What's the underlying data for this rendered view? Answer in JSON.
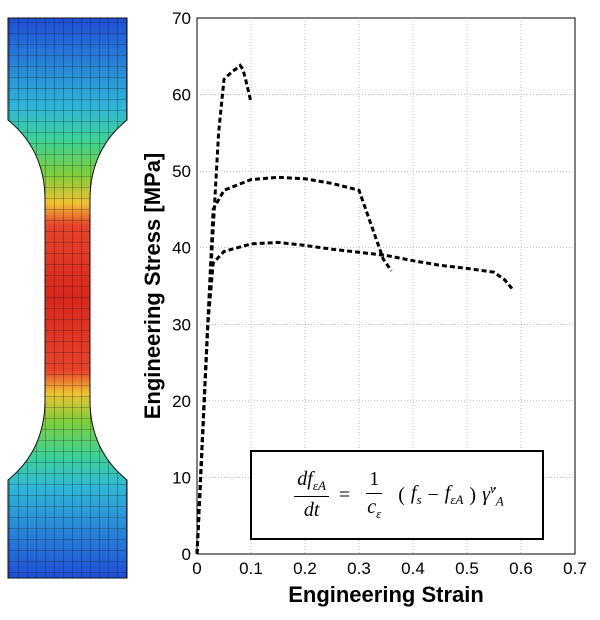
{
  "chart_data": {
    "type": "line",
    "title": "",
    "xlabel": "Engineering Strain",
    "ylabel": "Engineering Stress [MPa]",
    "xlim": [
      0,
      0.7
    ],
    "ylim": [
      0,
      70
    ],
    "xticks": [
      "0",
      "0.1",
      "0.2",
      "0.3",
      "0.4",
      "0.5",
      "0.6",
      "0.7"
    ],
    "yticks": [
      "0",
      "10",
      "20",
      "30",
      "40",
      "50",
      "60",
      "70"
    ],
    "grid": true,
    "line_style": "dashed",
    "series": [
      {
        "x": [
          0,
          0.02,
          0.04,
          0.05,
          0.065,
          0.075,
          0.08,
          0.085,
          0.09,
          0.1
        ],
        "y": [
          0,
          30,
          55,
          62,
          63,
          63.5,
          63.8,
          63.3,
          62.0,
          59.0
        ]
      },
      {
        "x": [
          0,
          0.02,
          0.03,
          0.05,
          0.1,
          0.15,
          0.2,
          0.25,
          0.3,
          0.31,
          0.33,
          0.345,
          0.36
        ],
        "y": [
          0,
          30,
          45,
          47.5,
          48.9,
          49.2,
          49.0,
          48.4,
          47.5,
          45.5,
          41.5,
          38.5,
          37.0
        ]
      },
      {
        "x": [
          0,
          0.02,
          0.03,
          0.05,
          0.1,
          0.15,
          0.2,
          0.25,
          0.3,
          0.35,
          0.4,
          0.45,
          0.5,
          0.55,
          0.57,
          0.585
        ],
        "y": [
          0,
          30,
          38,
          39.5,
          40.5,
          40.7,
          40.3,
          39.8,
          39.4,
          39.0,
          38.3,
          37.7,
          37.3,
          36.8,
          35.8,
          34.5
        ]
      }
    ],
    "annotation": {
      "lhs_num": "df",
      "lhs_num_sub": "εA",
      "lhs_den": "dt",
      "eq": "=",
      "rhs_num": "1",
      "rhs_den": "c",
      "rhs_den_sub": "ε",
      "paren_open": "(",
      "f_s": "f",
      "f_s_sub": "s",
      "minus": "−",
      "f_ea": "f",
      "f_ea_sub": "εA",
      "paren_close": ")",
      "gamma": "γ̇",
      "gamma_sup": "v",
      "gamma_sub": "A"
    }
  },
  "specimen_colors": {
    "low": "#1f4ed8",
    "low_mid": "#2fb6d8",
    "mid": "#3ed394",
    "mid_high": "#7fcf3a",
    "high_mid": "#f1c232",
    "high": "#e8432b",
    "max": "#d9261c"
  }
}
